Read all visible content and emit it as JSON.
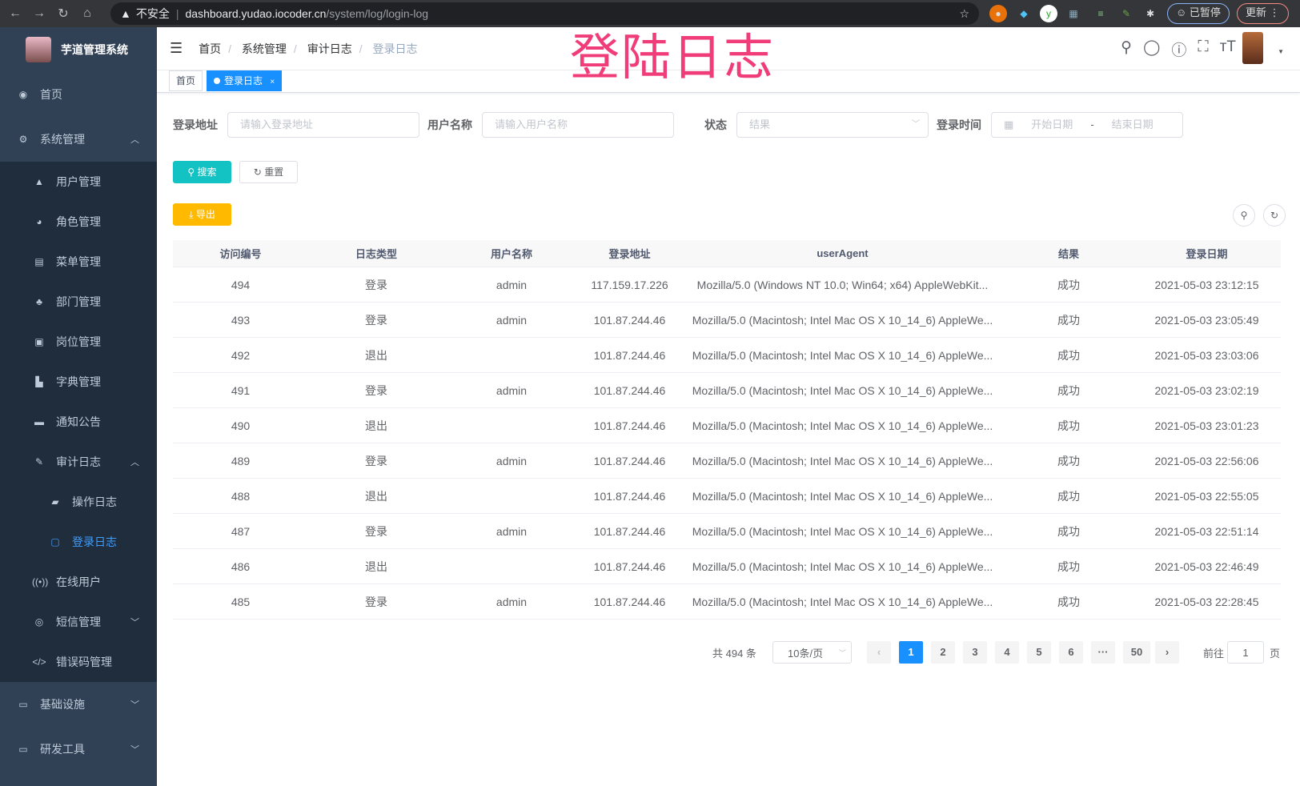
{
  "browser": {
    "url_warning": "不安全",
    "url_host": "dashboard.yudao.iocoder.cn",
    "url_path": "/system/log/login-log",
    "paused_label": "已暂停",
    "update_label": "更新"
  },
  "sidebar": {
    "title": "芋道管理系统",
    "items": [
      {
        "label": "首页",
        "icon": "dashboard-icon"
      },
      {
        "label": "系统管理",
        "icon": "gear-icon",
        "expanded": true,
        "children": [
          {
            "label": "用户管理",
            "icon": "user-icon"
          },
          {
            "label": "角色管理",
            "icon": "role-icon"
          },
          {
            "label": "菜单管理",
            "icon": "menu-icon"
          },
          {
            "label": "部门管理",
            "icon": "tree-icon"
          },
          {
            "label": "岗位管理",
            "icon": "post-icon"
          },
          {
            "label": "字典管理",
            "icon": "dict-icon"
          },
          {
            "label": "通知公告",
            "icon": "message-icon"
          },
          {
            "label": "审计日志",
            "icon": "edit-icon",
            "expanded": true,
            "children": [
              {
                "label": "操作日志",
                "icon": "form-icon"
              },
              {
                "label": "登录日志",
                "icon": "logininfor-icon",
                "active": true
              }
            ]
          },
          {
            "label": "在线用户",
            "icon": "online-icon"
          },
          {
            "label": "短信管理",
            "icon": "shield-icon"
          },
          {
            "label": "错误码管理",
            "icon": "code-icon"
          }
        ]
      },
      {
        "label": "基础设施",
        "icon": "monitor-icon"
      },
      {
        "label": "研发工具",
        "icon": "tool-icon"
      }
    ]
  },
  "navbar": {
    "breadcrumb": [
      "首页",
      "系统管理",
      "审计日志",
      "登录日志"
    ],
    "overlay_title": "登陆日志"
  },
  "tags": {
    "home": "首页",
    "current": "登录日志",
    "close": "×"
  },
  "filters": {
    "address_label": "登录地址",
    "address_placeholder": "请输入登录地址",
    "username_label": "用户名称",
    "username_placeholder": "请输入用户名称",
    "status_label": "状态",
    "status_placeholder": "结果",
    "time_label": "登录时间",
    "start_placeholder": "开始日期",
    "range_sep": "-",
    "end_placeholder": "结束日期"
  },
  "actions": {
    "search": "搜索",
    "reset": "重置",
    "export": "导出"
  },
  "colors": {
    "primary": "#1890ff",
    "search": "#13c2c2",
    "export": "#ffba00",
    "sidebar": "#304156"
  },
  "table": {
    "columns": [
      "访问编号",
      "日志类型",
      "用户名称",
      "登录地址",
      "userAgent",
      "结果",
      "登录日期"
    ],
    "rows": [
      [
        "494",
        "登录",
        "admin",
        "117.159.17.226",
        "Mozilla/5.0 (Windows NT 10.0; Win64; x64) AppleWebKit...",
        "成功",
        "2021-05-03 23:12:15"
      ],
      [
        "493",
        "登录",
        "admin",
        "101.87.244.46",
        "Mozilla/5.0 (Macintosh; Intel Mac OS X 10_14_6) AppleWe...",
        "成功",
        "2021-05-03 23:05:49"
      ],
      [
        "492",
        "退出",
        "",
        "101.87.244.46",
        "Mozilla/5.0 (Macintosh; Intel Mac OS X 10_14_6) AppleWe...",
        "成功",
        "2021-05-03 23:03:06"
      ],
      [
        "491",
        "登录",
        "admin",
        "101.87.244.46",
        "Mozilla/5.0 (Macintosh; Intel Mac OS X 10_14_6) AppleWe...",
        "成功",
        "2021-05-03 23:02:19"
      ],
      [
        "490",
        "退出",
        "",
        "101.87.244.46",
        "Mozilla/5.0 (Macintosh; Intel Mac OS X 10_14_6) AppleWe...",
        "成功",
        "2021-05-03 23:01:23"
      ],
      [
        "489",
        "登录",
        "admin",
        "101.87.244.46",
        "Mozilla/5.0 (Macintosh; Intel Mac OS X 10_14_6) AppleWe...",
        "成功",
        "2021-05-03 22:56:06"
      ],
      [
        "488",
        "退出",
        "",
        "101.87.244.46",
        "Mozilla/5.0 (Macintosh; Intel Mac OS X 10_14_6) AppleWe...",
        "成功",
        "2021-05-03 22:55:05"
      ],
      [
        "487",
        "登录",
        "admin",
        "101.87.244.46",
        "Mozilla/5.0 (Macintosh; Intel Mac OS X 10_14_6) AppleWe...",
        "成功",
        "2021-05-03 22:51:14"
      ],
      [
        "486",
        "退出",
        "",
        "101.87.244.46",
        "Mozilla/5.0 (Macintosh; Intel Mac OS X 10_14_6) AppleWe...",
        "成功",
        "2021-05-03 22:46:49"
      ],
      [
        "485",
        "登录",
        "admin",
        "101.87.244.46",
        "Mozilla/5.0 (Macintosh; Intel Mac OS X 10_14_6) AppleWe...",
        "成功",
        "2021-05-03 22:28:45"
      ]
    ]
  },
  "pagination": {
    "total": "共 494 条",
    "page_size": "10条/页",
    "pages": [
      "1",
      "2",
      "3",
      "4",
      "5",
      "6",
      "···",
      "50"
    ],
    "current": "1",
    "goto_label": "前往",
    "goto_value": "1",
    "page_suffix": "页"
  }
}
